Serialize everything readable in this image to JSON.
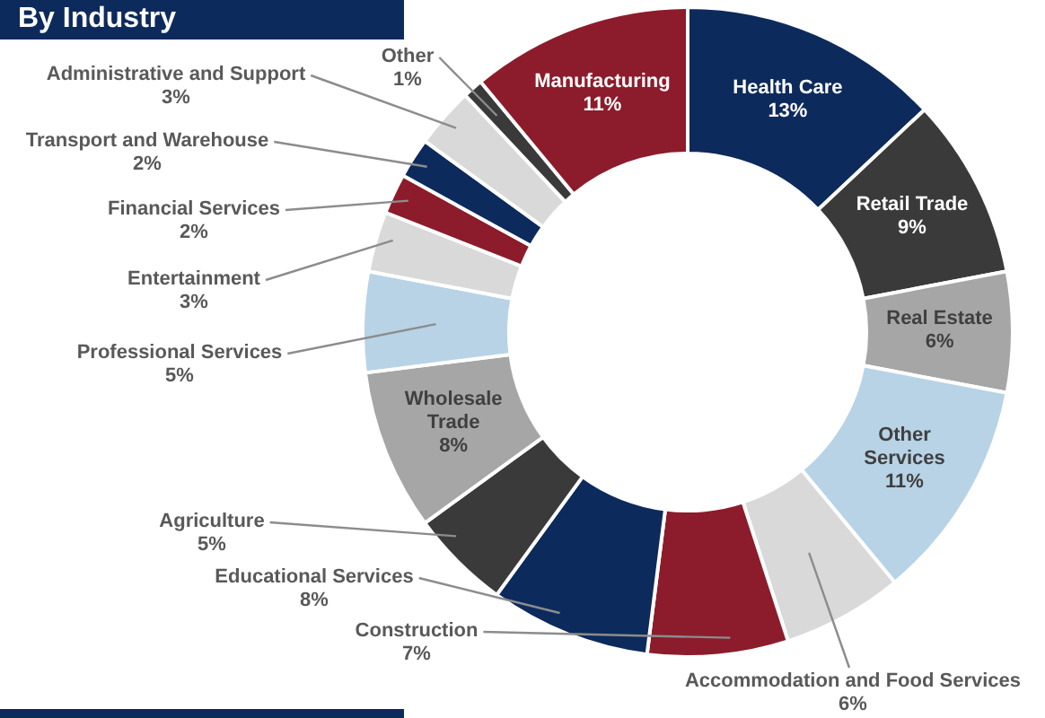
{
  "chart_data": {
    "type": "donut",
    "title": "By Industry",
    "categories": [
      "Health Care",
      "Retail Trade",
      "Real Estate",
      "Other Services",
      "Accommodation and Food Services",
      "Construction",
      "Educational Services",
      "Agriculture",
      "Wholesale Trade",
      "Professional Services",
      "Entertainment",
      "Financial Services",
      "Transport and Warehouse",
      "Administrative and Support",
      "Other",
      "Manufacturing"
    ],
    "values": [
      13,
      9,
      6,
      11,
      6,
      7,
      8,
      5,
      8,
      5,
      3,
      2,
      2,
      3,
      1,
      11
    ],
    "value_labels": [
      "13%",
      "9%",
      "6%",
      "11%",
      "6%",
      "7%",
      "8%",
      "5%",
      "8%",
      "5%",
      "3%",
      "2%",
      "2%",
      "3%",
      "1%",
      "11%"
    ],
    "colors": [
      "#0d2a5c",
      "#3a3a3a",
      "#a6a6a6",
      "#b8d3e6",
      "#d9d9d9",
      "#8c1c2b",
      "#0d2a5c",
      "#3a3a3a",
      "#a6a6a6",
      "#b8d3e6",
      "#d9d9d9",
      "#8c1c2b",
      "#0d2a5c",
      "#d9d9d9",
      "#3a3a3a",
      "#8c1c2b"
    ],
    "legend": false
  }
}
